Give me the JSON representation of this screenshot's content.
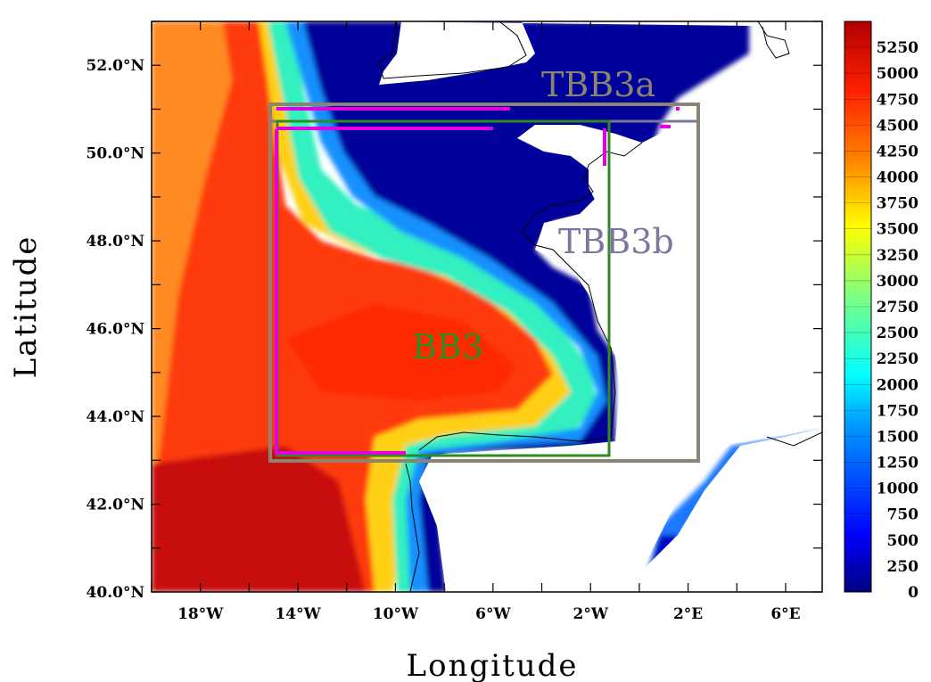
{
  "chart_data": {
    "type": "heatmap",
    "title": "",
    "xlabel": "Longitude",
    "ylabel": "Latitude",
    "xlim": [
      -20.0,
      7.5
    ],
    "ylim": [
      40.0,
      53.0
    ],
    "x_ticks": [
      {
        "value": -18,
        "label": "18°W"
      },
      {
        "value": -14,
        "label": "14°W"
      },
      {
        "value": -10,
        "label": "10°W"
      },
      {
        "value": -6,
        "label": "6°W"
      },
      {
        "value": -2,
        "label": "2°W"
      },
      {
        "value": 2,
        "label": "2°E"
      },
      {
        "value": 6,
        "label": "6°E"
      }
    ],
    "y_ticks": [
      {
        "value": 52,
        "label": "52.0°N"
      },
      {
        "value": 50,
        "label": "50.0°N"
      },
      {
        "value": 48,
        "label": "48.0°N"
      },
      {
        "value": 46,
        "label": "46.0°N"
      },
      {
        "value": 44,
        "label": "44.0°N"
      },
      {
        "value": 42,
        "label": "42.0°N"
      },
      {
        "value": 40,
        "label": "40.0°N"
      }
    ],
    "colorbar": {
      "min": 0,
      "max": 5500,
      "step": 125,
      "labels": [
        "5250",
        "5000",
        "4750",
        "4500",
        "4250",
        "4000",
        "3750",
        "3500",
        "3250",
        "3000",
        "2750",
        "2500",
        "2250",
        "2000",
        "1750",
        "1500",
        "1250",
        "1000",
        "750",
        "500",
        "250",
        "0"
      ],
      "colors": [
        "#00007f",
        "#0000ff",
        "#00a0ff",
        "#00ffff",
        "#7fff7f",
        "#ffff00",
        "#ff8000",
        "#ff2000",
        "#b00000"
      ]
    },
    "regions": [
      {
        "name": "TBB3a",
        "color": "#8a8470",
        "lon": [
          -15.0,
          2.5
        ],
        "lat": [
          43.0,
          51.1
        ]
      },
      {
        "name": "TBB3b",
        "color": "#7b78a0",
        "lon": [
          -15.0,
          2.5
        ],
        "lat": [
          43.0,
          50.7
        ]
      },
      {
        "name": "BB3",
        "color": "#2e8b22",
        "lon": [
          -14.5,
          -1.0
        ],
        "lat": [
          43.15,
          50.7
        ]
      }
    ],
    "magenta_track": {
      "color": "#e000e0"
    }
  }
}
